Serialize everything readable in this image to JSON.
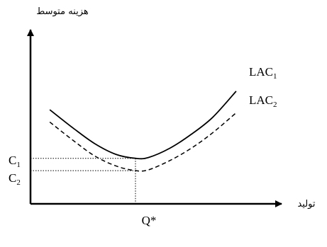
{
  "chart_data": {
    "type": "line",
    "y_axis_label": "هزینه متوسط",
    "x_axis_label": "تولید",
    "xlim": [
      0,
      10
    ],
    "ylim": [
      0,
      10
    ],
    "grid": false,
    "series": [
      {
        "name": "LAC1",
        "label_main": "LAC",
        "label_sub": "1",
        "style": "solid",
        "x": [
          0.9,
          2.0,
          3.0,
          4.0,
          4.9,
          5.5,
          6.5,
          7.5,
          8.5,
          9.6
        ],
        "y": [
          6.1,
          4.9,
          3.9,
          3.2,
          2.95,
          3.0,
          3.6,
          4.5,
          5.6,
          7.3
        ]
      },
      {
        "name": "LAC2",
        "label_main": "LAC",
        "label_sub": "2",
        "style": "dashed",
        "x": [
          0.9,
          2.0,
          3.0,
          4.0,
          4.9,
          5.5,
          6.5,
          7.5,
          8.5,
          9.6
        ],
        "y": [
          5.3,
          4.1,
          3.1,
          2.45,
          2.15,
          2.2,
          2.8,
          3.6,
          4.6,
          5.9
        ]
      }
    ],
    "reference_lines": [
      {
        "type": "horizontal",
        "y": 2.95,
        "label_main": "C",
        "label_sub": "1"
      },
      {
        "type": "horizontal",
        "y": 2.15,
        "label_main": "C",
        "label_sub": "2"
      },
      {
        "type": "vertical",
        "x": 4.9,
        "label": "Q*"
      }
    ],
    "colors": {
      "line": "#000000",
      "background": "#ffffff"
    }
  }
}
